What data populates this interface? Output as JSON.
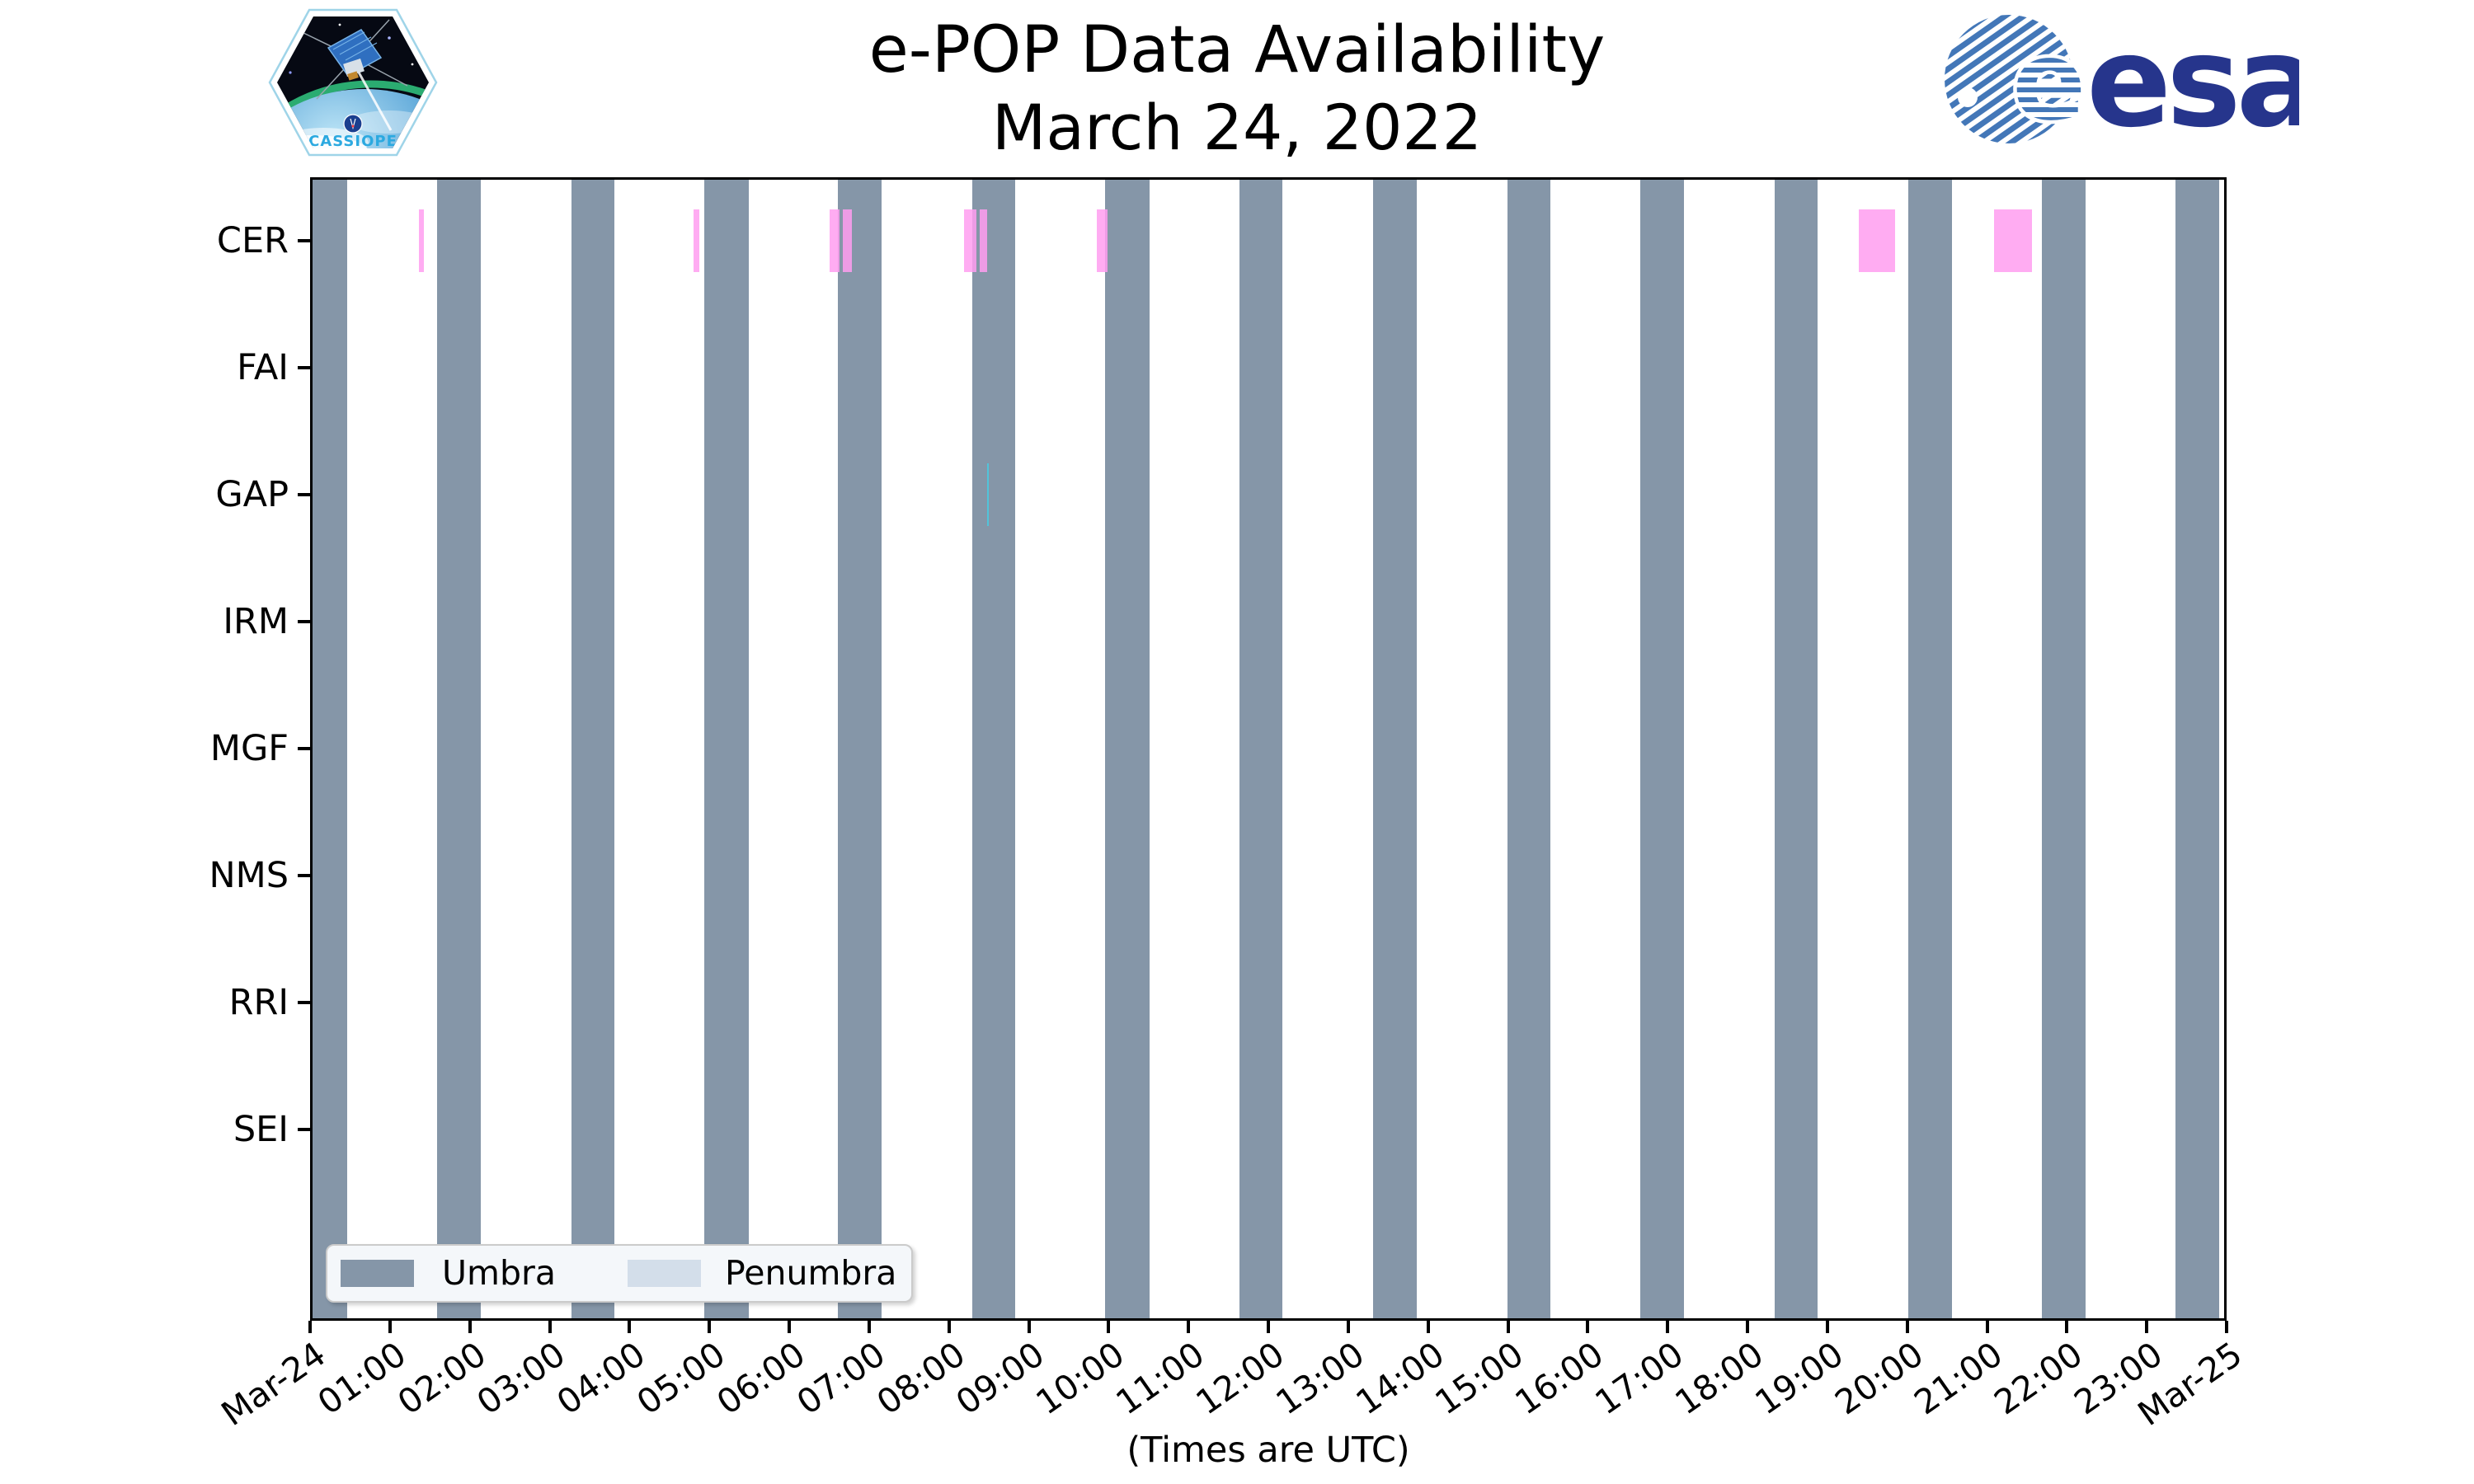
{
  "logos": {
    "cassiope_label": "CASSIOPE",
    "esa_label": "esa"
  },
  "chart_data": {
    "type": "bar",
    "title": "e-POP Data Availability",
    "subtitle": "March 24, 2022",
    "xlabel": "(Times are UTC)",
    "x_axis": {
      "range_hours": [
        0,
        24
      ],
      "tick_labels": [
        "Mar-24",
        "01:00",
        "02:00",
        "03:00",
        "04:00",
        "05:00",
        "06:00",
        "07:00",
        "08:00",
        "09:00",
        "10:00",
        "11:00",
        "12:00",
        "13:00",
        "14:00",
        "15:00",
        "16:00",
        "17:00",
        "18:00",
        "19:00",
        "20:00",
        "21:00",
        "22:00",
        "23:00",
        "Mar-25"
      ]
    },
    "instruments": [
      "CER",
      "FAI",
      "GAP",
      "IRM",
      "MGF",
      "NMS",
      "RRI",
      "SEI"
    ],
    "umbra_intervals_hours": [
      [
        -0.08,
        0.46
      ],
      [
        1.59,
        2.14
      ],
      [
        3.27,
        3.81
      ],
      [
        4.94,
        5.49
      ],
      [
        6.61,
        7.16
      ],
      [
        8.29,
        8.83
      ],
      [
        9.96,
        10.51
      ],
      [
        11.64,
        12.18
      ],
      [
        13.31,
        13.86
      ],
      [
        14.99,
        15.53
      ],
      [
        16.66,
        17.21
      ],
      [
        18.34,
        18.88
      ],
      [
        20.01,
        20.56
      ],
      [
        21.69,
        22.23
      ],
      [
        23.36,
        23.91
      ]
    ],
    "availability": [
      {
        "instrument": "CER",
        "color": "#FF9EF0",
        "intervals_hours": [
          [
            1.36,
            1.43
          ],
          [
            4.8,
            4.87
          ],
          [
            6.51,
            6.63
          ],
          [
            6.67,
            6.79
          ],
          [
            8.19,
            8.34
          ],
          [
            8.39,
            8.48
          ],
          [
            9.85,
            9.99
          ],
          [
            19.39,
            19.85
          ],
          [
            21.09,
            21.56
          ]
        ]
      },
      {
        "instrument": "GAP",
        "color": "#48CDE3",
        "intervals_hours": [
          [
            8.48,
            8.5
          ]
        ]
      }
    ],
    "legend": [
      {
        "label": "Umbra",
        "color": "#8596A8"
      },
      {
        "label": "Penumbra",
        "color": "#D3DEEA"
      }
    ],
    "colors": {
      "umbra": "#8596A8",
      "penumbra": "#D3DEEA",
      "cer_bars": "#FF9EF0",
      "gap_bars": "#48CDE3",
      "esa_navy": "#26358C",
      "esa_stripe_blue": "#4377B8",
      "cassiope_text": "#2BA9E0"
    }
  }
}
